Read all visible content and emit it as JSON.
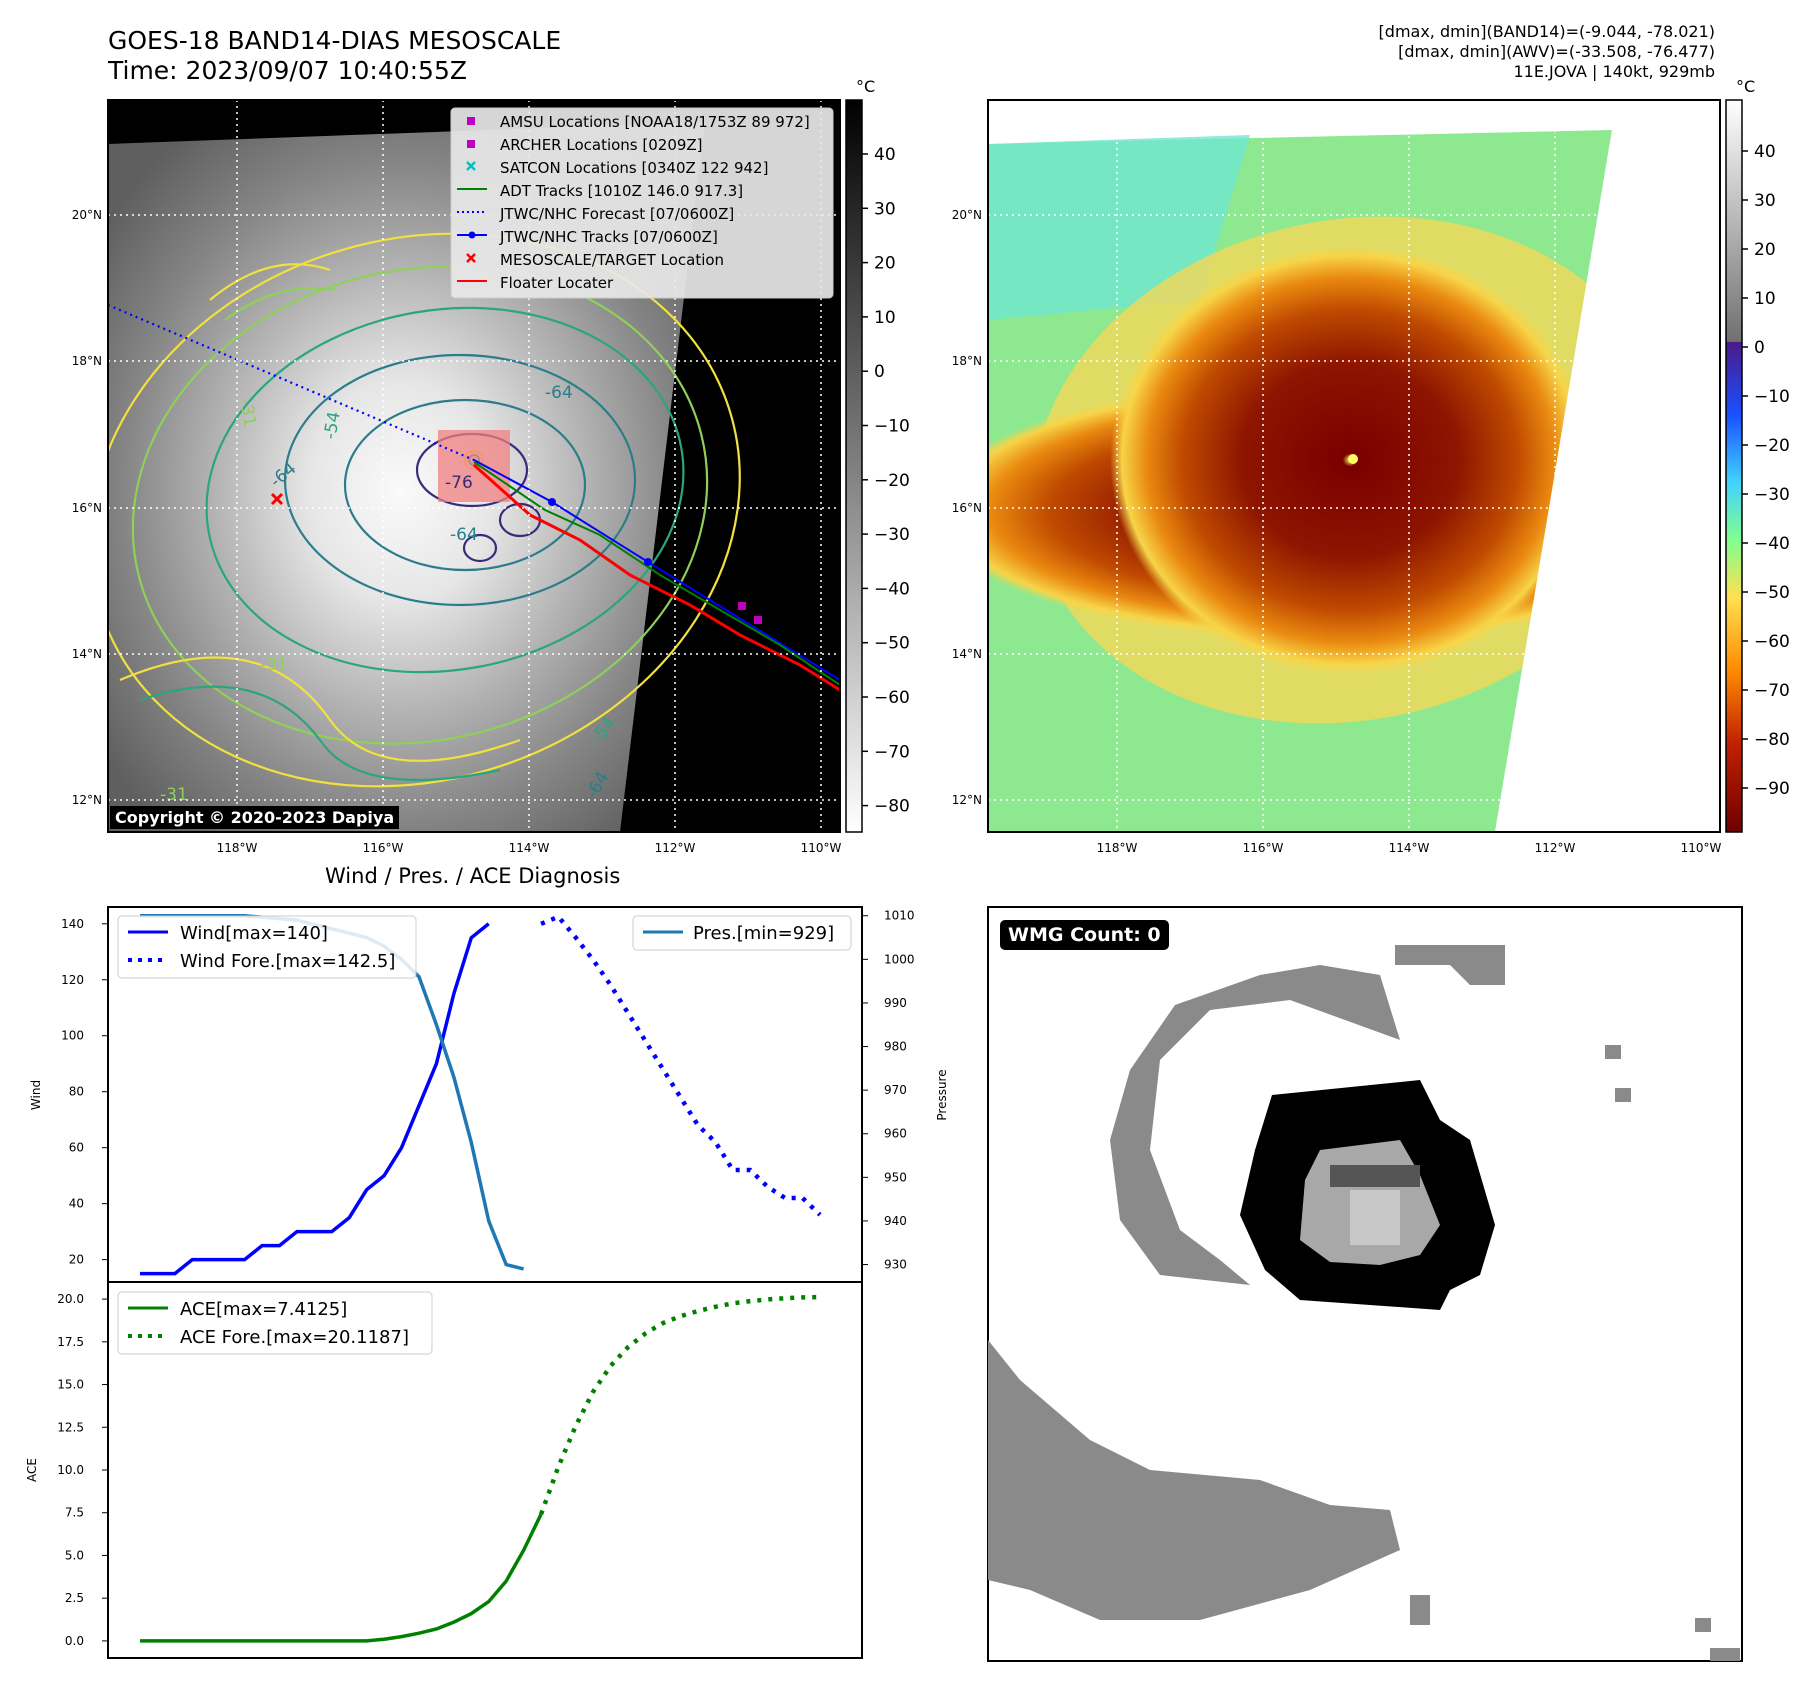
{
  "header": {
    "title_line1": "GOES-18 BAND14-DIAS MESOSCALE",
    "title_line2": "Time: 2023/09/07 10:40:55Z",
    "stats_line1": "[dmax, dmin](BAND14)=(-9.044, -78.021)",
    "stats_line2": "[dmax, dmin](AWV)=(-33.508, -76.477)",
    "stats_line3": "11E.JOVA | 140kt, 929mb"
  },
  "map": {
    "lat_labels": [
      "20°N",
      "18°N",
      "16°N",
      "14°N",
      "12°N"
    ],
    "lon_labels": [
      "118°W",
      "116°W",
      "114°W",
      "112°W",
      "110°W"
    ],
    "copyright": "Copyright © 2020-2023 Dapiya",
    "contour_labels": [
      "-64",
      "-76",
      "-64",
      "-64",
      "-31",
      "-31",
      "-54",
      "-31",
      "-54",
      "-64"
    ],
    "legend": [
      {
        "label": "AMSU Locations [NOAA18/1753Z 89 972]",
        "color": "#c000c0",
        "marker": "square"
      },
      {
        "label": "ARCHER Locations [0209Z]",
        "color": "#c000c0",
        "marker": "square"
      },
      {
        "label": "SATCON Locations [0340Z 122 942]",
        "color": "#00c0c0",
        "marker": "x"
      },
      {
        "label": "ADT Tracks [1010Z 146.0 917.3]",
        "color": "#008000",
        "marker": "line"
      },
      {
        "label": "JTWC/NHC Forecast [07/0600Z]",
        "color": "#0000ff",
        "marker": "dotted"
      },
      {
        "label": "JTWC/NHC Tracks [07/0600Z]",
        "color": "#0000ff",
        "marker": "line-dot"
      },
      {
        "label": "MESOSCALE/TARGET Location",
        "color": "#ff0000",
        "marker": "x"
      },
      {
        "label": "Floater Locater",
        "color": "#ff0000",
        "marker": "line"
      }
    ]
  },
  "colorbar_gray": {
    "unit": "°C",
    "ticks": [
      "40",
      "30",
      "20",
      "10",
      "0",
      "−10",
      "−20",
      "−30",
      "−40",
      "−50",
      "−60",
      "−70",
      "−80"
    ]
  },
  "colorbar_color": {
    "unit": "°C",
    "ticks": [
      "40",
      "30",
      "20",
      "10",
      "0",
      "−10",
      "−20",
      "−30",
      "−40",
      "−50",
      "−60",
      "−70",
      "−80",
      "−90"
    ]
  },
  "wmg": {
    "badge": "WMG Count: 0"
  },
  "chart_data": [
    {
      "type": "line",
      "title": "Wind / Pres. / ACE Diagnosis",
      "ylabel": "Wind",
      "y2label": "Pressure",
      "ylim": [
        12,
        146
      ],
      "y2lim": [
        926,
        1012
      ],
      "x": [
        0,
        1,
        2,
        3,
        4,
        5,
        6,
        7,
        8,
        9,
        10,
        11,
        12,
        13,
        14,
        15,
        16,
        17,
        18,
        19,
        20,
        21,
        22,
        23,
        24,
        25,
        26,
        27,
        28,
        29,
        30,
        31,
        32,
        33,
        34,
        35,
        36,
        37,
        38,
        39
      ],
      "wind_ticks": [
        20,
        40,
        60,
        80,
        100,
        120,
        140
      ],
      "pressure_ticks": [
        930,
        940,
        950,
        960,
        970,
        980,
        990,
        1000,
        1010
      ],
      "series": [
        {
          "name": "Wind[max=140]",
          "axis": "left",
          "color": "#0000ff",
          "style": "solid",
          "x": [
            0,
            2,
            3,
            5,
            6,
            7,
            8,
            9,
            10,
            11,
            12,
            13,
            14,
            15,
            16,
            17,
            18,
            19,
            20,
            21,
            22,
            23
          ],
          "values": [
            15,
            15,
            20,
            20,
            20,
            25,
            25,
            30,
            30,
            30,
            35,
            45,
            50,
            60,
            75,
            90,
            115,
            135,
            140,
            null,
            null,
            null
          ]
        },
        {
          "name": "Wind Fore.[max=142.5]",
          "axis": "left",
          "color": "#0000ff",
          "style": "dotted",
          "x": [
            23,
            24,
            25,
            26,
            27,
            28,
            29,
            30,
            31,
            32,
            33,
            34,
            35,
            36,
            37,
            38,
            39
          ],
          "values": [
            140,
            142.5,
            135,
            127,
            118,
            108,
            98,
            88,
            78,
            68,
            62,
            52,
            52,
            46,
            42,
            42,
            36
          ]
        },
        {
          "name": "Pres.[min=929]",
          "axis": "right",
          "color": "#1f77b4",
          "style": "solid",
          "x": [
            0,
            3,
            6,
            9,
            10,
            11,
            12,
            13,
            14,
            15,
            16,
            17,
            18,
            19,
            20,
            21,
            22,
            23
          ],
          "values": [
            1010,
            1010,
            1010,
            1009,
            1008,
            1007,
            1006,
            1005,
            1003,
            1000,
            996,
            985,
            973,
            958,
            940,
            930,
            929,
            null
          ]
        }
      ]
    },
    {
      "type": "line",
      "ylabel": "ACE",
      "ylim": [
        -1,
        21
      ],
      "ace_ticks": [
        "0.0",
        "2.5",
        "5.0",
        "7.5",
        "10.0",
        "12.5",
        "15.0",
        "17.5",
        "20.0"
      ],
      "series": [
        {
          "name": "ACE[max=7.4125]",
          "color": "#008000",
          "style": "solid",
          "x": [
            0,
            4,
            8,
            12,
            13,
            14,
            15,
            16,
            17,
            18,
            19,
            20,
            21,
            22,
            23
          ],
          "values": [
            0,
            0,
            0,
            0,
            0,
            0.1,
            0.25,
            0.45,
            0.7,
            1.1,
            1.6,
            2.3,
            3.5,
            5.3,
            7.4125
          ]
        },
        {
          "name": "ACE Fore.[max=20.1187]",
          "color": "#008000",
          "style": "dotted",
          "x": [
            23,
            24,
            25,
            26,
            27,
            28,
            29,
            30,
            31,
            32,
            33,
            34,
            35,
            36,
            37,
            38,
            39
          ],
          "values": [
            7.4125,
            10.2,
            12.6,
            14.6,
            16.1,
            17.2,
            18.0,
            18.6,
            19.0,
            19.3,
            19.55,
            19.75,
            19.88,
            19.98,
            20.05,
            20.1,
            20.1187
          ]
        }
      ]
    }
  ]
}
